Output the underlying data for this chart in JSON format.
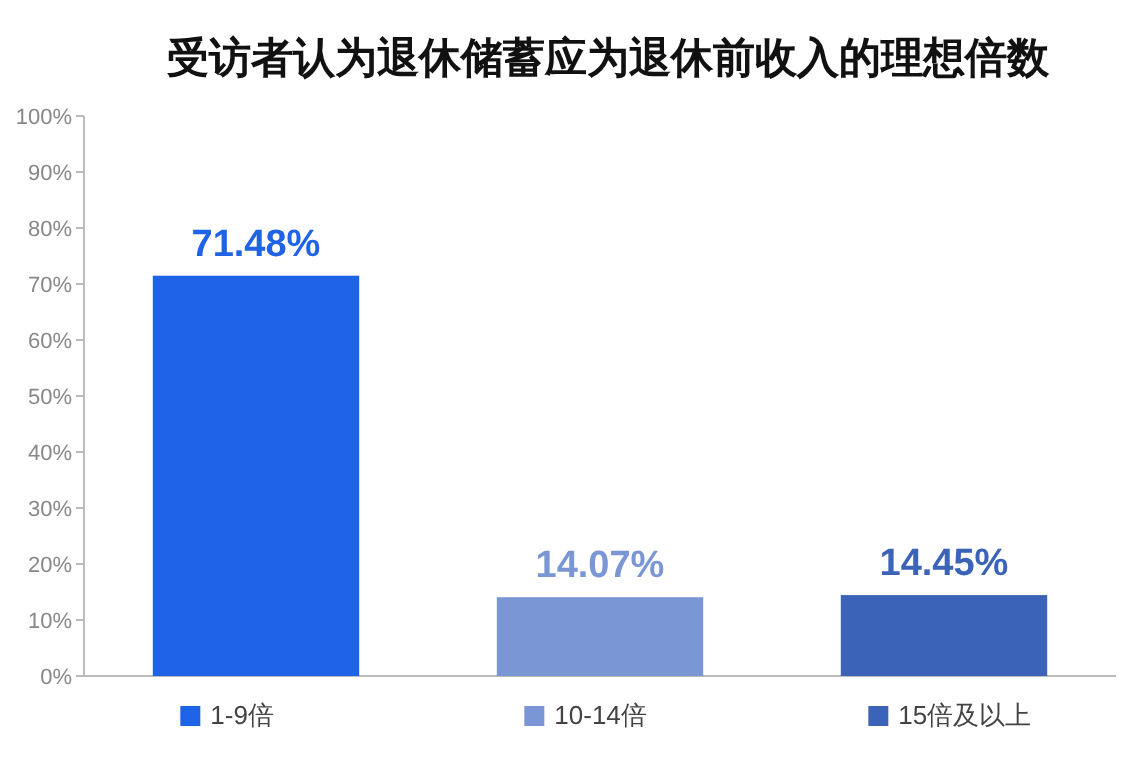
{
  "chart_data": {
    "type": "bar",
    "title": "受访者认为退休储蓄应为退休前收入的理想倍数",
    "categories": [
      null,
      null,
      null
    ],
    "series": [
      {
        "name": "1-9倍",
        "color": "#1f63e6",
        "values": [
          71.48,
          null,
          null
        ],
        "value_labels": [
          "71.48%",
          null,
          null
        ]
      },
      {
        "name": "10-14倍",
        "color": "#7b96d4",
        "values": [
          null,
          14.07,
          null
        ],
        "value_labels": [
          null,
          "14.07%",
          null
        ]
      },
      {
        "name": "15倍及以上",
        "color": "#3b63b8",
        "values": [
          null,
          null,
          14.45
        ],
        "value_labels": [
          null,
          null,
          "14.45%"
        ]
      }
    ],
    "ylim": [
      0,
      100
    ],
    "yticks": [
      {
        "value": 0,
        "label": "0%"
      },
      {
        "value": 10,
        "label": "10%"
      },
      {
        "value": 20,
        "label": "20%"
      },
      {
        "value": 30,
        "label": "30%"
      },
      {
        "value": 40,
        "label": "40%"
      },
      {
        "value": 50,
        "label": "50%"
      },
      {
        "value": 60,
        "label": "60%"
      },
      {
        "value": 70,
        "label": "70%"
      },
      {
        "value": 80,
        "label": "80%"
      },
      {
        "value": 90,
        "label": "90%"
      },
      {
        "value": 100,
        "label": "100%"
      }
    ],
    "grid": false,
    "legend": "bottom"
  }
}
